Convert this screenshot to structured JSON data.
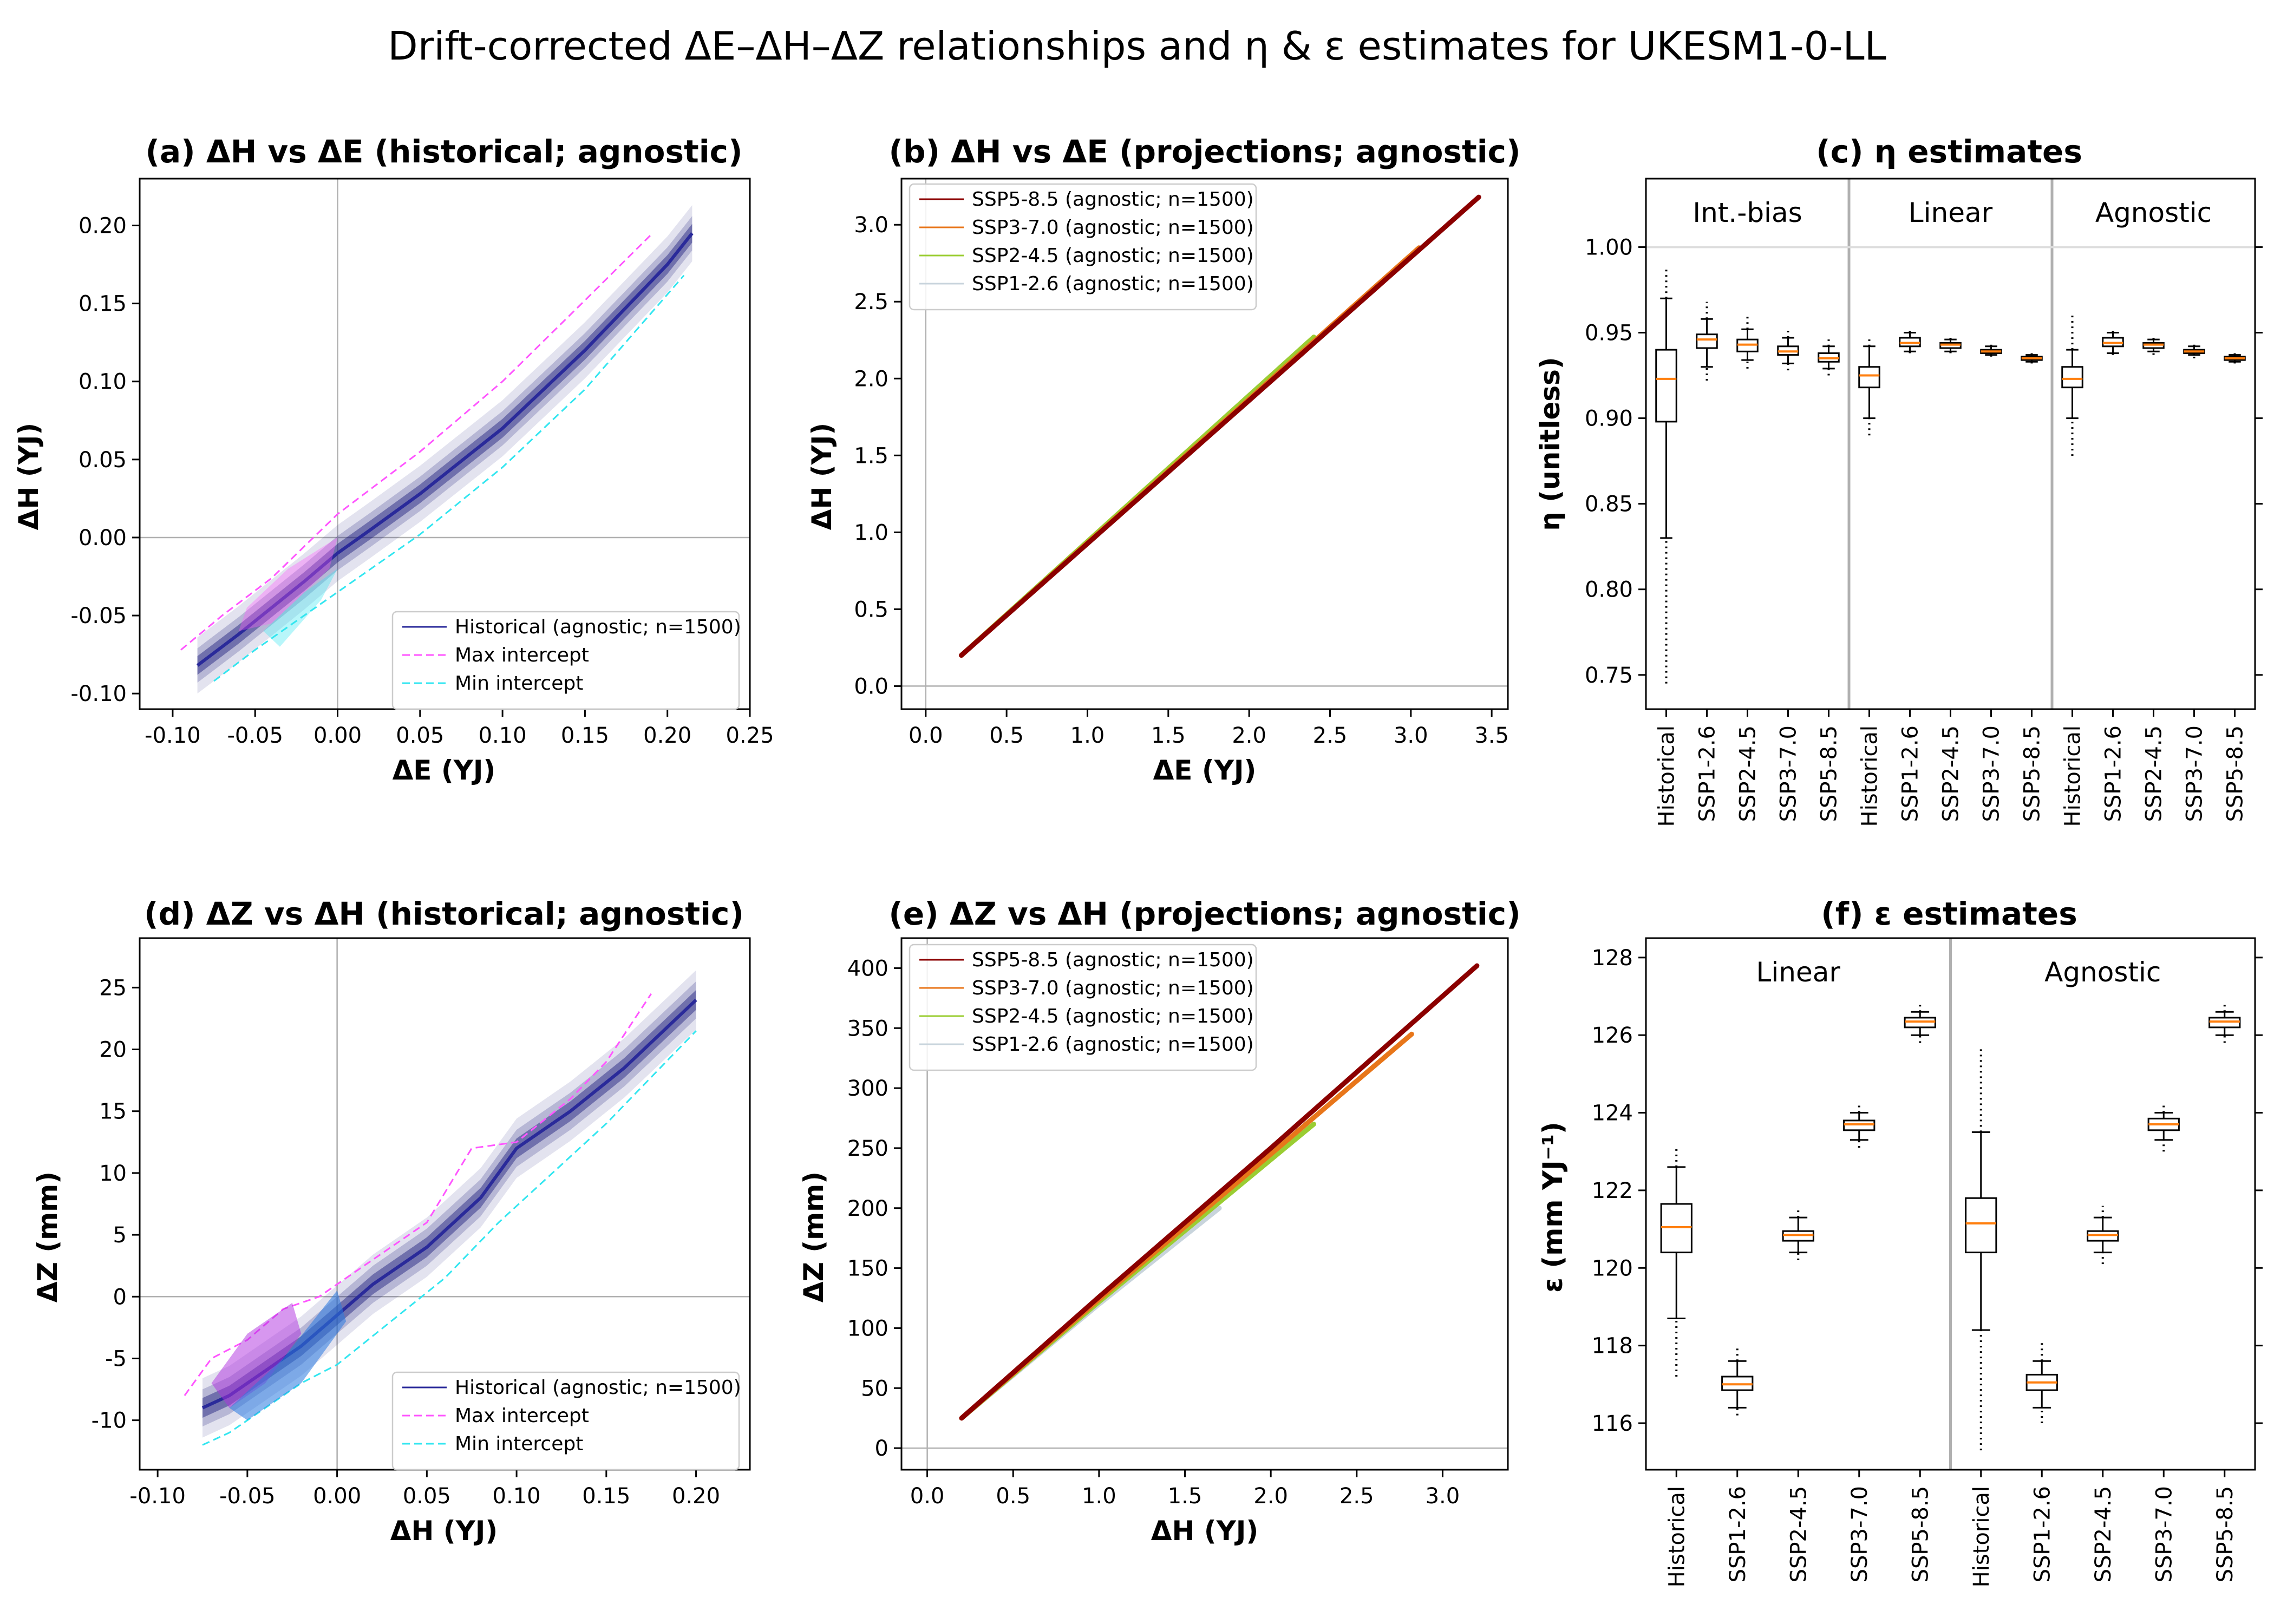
{
  "figure": {
    "title": "Drift-corrected ΔE–ΔH–ΔZ relationships and η & ε estimates for UKESM1-0-LL"
  },
  "colors": {
    "historical_line": "#2a2a9a",
    "historical_band": "#1a1a7a",
    "max_intercept": "#ff55ff",
    "min_intercept": "#33e6f0",
    "ssp585": "#8b0000",
    "ssp370": "#e8761a",
    "ssp245": "#9acd32",
    "ssp126": "#c8d4dc",
    "median": "#ff7f0e",
    "ref_line": "#b0b0b0"
  },
  "panels": {
    "a": {
      "title": "(a) ΔH vs ΔE (historical; agnostic)",
      "xlabel": "ΔE (YJ)",
      "ylabel": "ΔH (YJ)",
      "xlim": [
        -0.12,
        0.25
      ],
      "ylim": [
        -0.11,
        0.23
      ],
      "xticks": [
        "-0.10",
        "-0.05",
        "0.00",
        "0.05",
        "0.10",
        "0.15",
        "0.20",
        "0.25"
      ],
      "yticks": [
        "-0.10",
        "-0.05",
        "0.00",
        "0.05",
        "0.10",
        "0.15",
        "0.20"
      ],
      "legend": [
        "Historical (agnostic; n=1500)",
        "Max intercept",
        "Min intercept"
      ]
    },
    "b": {
      "title": "(b) ΔH vs ΔE (projections; agnostic)",
      "xlabel": "ΔE (YJ)",
      "ylabel": "ΔH (YJ)",
      "xlim": [
        -0.15,
        3.6
      ],
      "ylim": [
        -0.15,
        3.3
      ],
      "xticks": [
        "0.0",
        "0.5",
        "1.0",
        "1.5",
        "2.0",
        "2.5",
        "3.0",
        "3.5"
      ],
      "yticks": [
        "0.0",
        "0.5",
        "1.0",
        "1.5",
        "2.0",
        "2.5",
        "3.0"
      ],
      "legend": [
        "SSP5-8.5 (agnostic; n=1500)",
        "SSP3-7.0 (agnostic; n=1500)",
        "SSP2-4.5 (agnostic; n=1500)",
        "SSP1-2.6 (agnostic; n=1500)"
      ]
    },
    "c": {
      "title": "(c) η estimates",
      "ylabel": "η (unitless)",
      "ylim": [
        0.73,
        1.04
      ],
      "yticks": [
        "0.75",
        "0.80",
        "0.85",
        "0.90",
        "0.95",
        "1.00"
      ],
      "groups": [
        "Int.-bias",
        "Linear",
        "Agnostic"
      ],
      "categories": [
        "Historical",
        "SSP1-2.6",
        "SSP2-4.5",
        "SSP3-7.0",
        "SSP5-8.5",
        "Historical",
        "SSP1-2.6",
        "SSP2-4.5",
        "SSP3-7.0",
        "SSP5-8.5",
        "Historical",
        "SSP1-2.6",
        "SSP2-4.5",
        "SSP3-7.0",
        "SSP5-8.5"
      ]
    },
    "d": {
      "title": "(d) ΔZ vs ΔH (historical; agnostic)",
      "xlabel": "ΔH (YJ)",
      "ylabel": "ΔZ (mm)",
      "xlim": [
        -0.11,
        0.23
      ],
      "ylim": [
        -14,
        29
      ],
      "xticks": [
        "-0.10",
        "-0.05",
        "0.00",
        "0.05",
        "0.10",
        "0.15",
        "0.20"
      ],
      "yticks": [
        "-10",
        "-5",
        "0",
        "5",
        "10",
        "15",
        "20",
        "25"
      ],
      "legend": [
        "Historical (agnostic; n=1500)",
        "Max intercept",
        "Min intercept"
      ]
    },
    "e": {
      "title": "(e) ΔZ vs ΔH (projections; agnostic)",
      "xlabel": "ΔH (YJ)",
      "ylabel": "ΔZ (mm)",
      "xlim": [
        -0.15,
        3.38
      ],
      "ylim": [
        -18,
        425
      ],
      "xticks": [
        "0.0",
        "0.5",
        "1.0",
        "1.5",
        "2.0",
        "2.5",
        "3.0"
      ],
      "yticks": [
        "0",
        "50",
        "100",
        "150",
        "200",
        "250",
        "300",
        "350",
        "400"
      ],
      "legend": [
        "SSP5-8.5 (agnostic; n=1500)",
        "SSP3-7.0 (agnostic; n=1500)",
        "SSP2-4.5 (agnostic; n=1500)",
        "SSP1-2.6 (agnostic; n=1500)"
      ]
    },
    "f": {
      "title": "(f) ε estimates",
      "ylabel": "ε (mm YJ⁻¹)",
      "ylim": [
        114.8,
        128.5
      ],
      "yticks": [
        "116",
        "118",
        "120",
        "122",
        "124",
        "126",
        "128"
      ],
      "groups": [
        "Linear",
        "Agnostic"
      ],
      "categories": [
        "Historical",
        "SSP1-2.6",
        "SSP2-4.5",
        "SSP3-7.0",
        "SSP5-8.5",
        "Historical",
        "SSP1-2.6",
        "SSP2-4.5",
        "SSP3-7.0",
        "SSP5-8.5"
      ]
    }
  },
  "chart_data": [
    {
      "type": "line",
      "panel": "a",
      "title": "(a) ΔH vs ΔE (historical; agnostic)",
      "xlabel": "ΔE (YJ)",
      "ylabel": "ΔH (YJ)",
      "xlim": [
        -0.12,
        0.25
      ],
      "ylim": [
        -0.11,
        0.23
      ],
      "series": [
        {
          "name": "Historical (agnostic; n=1500)",
          "x": [
            -0.085,
            -0.06,
            -0.04,
            -0.02,
            0.0,
            0.02,
            0.05,
            0.1,
            0.15,
            0.2,
            0.215
          ],
          "y": [
            -0.082,
            -0.062,
            -0.045,
            -0.028,
            -0.01,
            0.005,
            0.028,
            0.07,
            0.12,
            0.175,
            0.195
          ]
        },
        {
          "name": "Max intercept",
          "x": [
            -0.095,
            -0.07,
            -0.04,
            0.0,
            0.05,
            0.1,
            0.15,
            0.19
          ],
          "y": [
            -0.072,
            -0.05,
            -0.026,
            0.015,
            0.055,
            0.1,
            0.152,
            0.194
          ]
        },
        {
          "name": "Min intercept",
          "x": [
            -0.075,
            -0.05,
            0.0,
            0.05,
            0.1,
            0.15,
            0.21
          ],
          "y": [
            -0.092,
            -0.072,
            -0.035,
            0.002,
            0.045,
            0.095,
            0.168
          ]
        }
      ]
    },
    {
      "type": "line",
      "panel": "b",
      "title": "(b) ΔH vs ΔE (projections; agnostic)",
      "xlabel": "ΔE (YJ)",
      "ylabel": "ΔH (YJ)",
      "xlim": [
        -0.15,
        3.6
      ],
      "ylim": [
        -0.15,
        3.3
      ],
      "series": [
        {
          "name": "SSP1-2.6 (agnostic; n=1500)",
          "x": [
            0.22,
            1.8
          ],
          "y": [
            0.2,
            1.7
          ]
        },
        {
          "name": "SSP2-4.5 (agnostic; n=1500)",
          "x": [
            0.22,
            2.4
          ],
          "y": [
            0.2,
            2.27
          ]
        },
        {
          "name": "SSP3-7.0 (agnostic; n=1500)",
          "x": [
            0.22,
            3.05
          ],
          "y": [
            0.2,
            2.85
          ]
        },
        {
          "name": "SSP5-8.5 (agnostic; n=1500)",
          "x": [
            0.22,
            3.42
          ],
          "y": [
            0.2,
            3.18
          ]
        }
      ]
    },
    {
      "type": "box",
      "panel": "c",
      "title": "(c) η estimates",
      "ylabel": "η (unitless)",
      "ylim": [
        0.73,
        1.04
      ],
      "groups": [
        "Int.-bias",
        "Linear",
        "Agnostic"
      ],
      "categories": [
        "Historical",
        "SSP1-2.6",
        "SSP2-4.5",
        "SSP3-7.0",
        "SSP5-8.5",
        "Historical",
        "SSP1-2.6",
        "SSP2-4.5",
        "SSP3-7.0",
        "SSP5-8.5",
        "Historical",
        "SSP1-2.6",
        "SSP2-4.5",
        "SSP3-7.0",
        "SSP5-8.5"
      ],
      "boxes": [
        {
          "q1": 0.898,
          "median": 0.923,
          "q3": 0.94,
          "wlo": 0.83,
          "whi": 0.97,
          "fmin": 0.745,
          "fmax": 0.988
        },
        {
          "q1": 0.941,
          "median": 0.946,
          "q3": 0.949,
          "wlo": 0.93,
          "whi": 0.958,
          "fmin": 0.922,
          "fmax": 0.968
        },
        {
          "q1": 0.939,
          "median": 0.943,
          "q3": 0.946,
          "wlo": 0.934,
          "whi": 0.952,
          "fmin": 0.929,
          "fmax": 0.96
        },
        {
          "q1": 0.937,
          "median": 0.939,
          "q3": 0.942,
          "wlo": 0.932,
          "whi": 0.947,
          "fmin": 0.928,
          "fmax": 0.952
        },
        {
          "q1": 0.933,
          "median": 0.935,
          "q3": 0.938,
          "wlo": 0.929,
          "whi": 0.942,
          "fmin": 0.925,
          "fmax": 0.946
        },
        {
          "q1": 0.918,
          "median": 0.925,
          "q3": 0.93,
          "wlo": 0.9,
          "whi": 0.942,
          "fmin": 0.89,
          "fmax": 0.946
        },
        {
          "q1": 0.942,
          "median": 0.944,
          "q3": 0.947,
          "wlo": 0.939,
          "whi": 0.95,
          "fmin": 0.938,
          "fmax": 0.951
        },
        {
          "q1": 0.941,
          "median": 0.943,
          "q3": 0.944,
          "wlo": 0.939,
          "whi": 0.946,
          "fmin": 0.938,
          "fmax": 0.947
        },
        {
          "q1": 0.938,
          "median": 0.939,
          "q3": 0.94,
          "wlo": 0.937,
          "whi": 0.942,
          "fmin": 0.936,
          "fmax": 0.943
        },
        {
          "q1": 0.934,
          "median": 0.935,
          "q3": 0.936,
          "wlo": 0.933,
          "whi": 0.937,
          "fmin": 0.932,
          "fmax": 0.938
        },
        {
          "q1": 0.918,
          "median": 0.923,
          "q3": 0.93,
          "wlo": 0.9,
          "whi": 0.94,
          "fmin": 0.878,
          "fmax": 0.96
        },
        {
          "q1": 0.942,
          "median": 0.944,
          "q3": 0.947,
          "wlo": 0.938,
          "whi": 0.95,
          "fmin": 0.937,
          "fmax": 0.952
        },
        {
          "q1": 0.941,
          "median": 0.943,
          "q3": 0.944,
          "wlo": 0.939,
          "whi": 0.946,
          "fmin": 0.937,
          "fmax": 0.948
        },
        {
          "q1": 0.938,
          "median": 0.939,
          "q3": 0.94,
          "wlo": 0.937,
          "whi": 0.942,
          "fmin": 0.935,
          "fmax": 0.944
        },
        {
          "q1": 0.934,
          "median": 0.935,
          "q3": 0.936,
          "wlo": 0.933,
          "whi": 0.937,
          "fmin": 0.932,
          "fmax": 0.939
        }
      ]
    },
    {
      "type": "line",
      "panel": "d",
      "title": "(d) ΔZ vs ΔH (historical; agnostic)",
      "xlabel": "ΔH (YJ)",
      "ylabel": "ΔZ (mm)",
      "xlim": [
        -0.11,
        0.23
      ],
      "ylim": [
        -14,
        29
      ],
      "series": [
        {
          "name": "Historical (agnostic; n=1500)",
          "x": [
            -0.075,
            -0.06,
            -0.04,
            -0.02,
            0.0,
            0.02,
            0.05,
            0.08,
            0.1,
            0.13,
            0.16,
            0.2
          ],
          "y": [
            -9,
            -8,
            -6,
            -4,
            -1.5,
            1,
            4,
            8,
            12,
            15,
            18.5,
            24
          ]
        },
        {
          "name": "Max intercept",
          "x": [
            -0.085,
            -0.07,
            -0.05,
            -0.03,
            -0.01,
            0.0,
            0.02,
            0.05,
            0.075,
            0.1,
            0.13,
            0.15,
            0.175
          ],
          "y": [
            -8,
            -5,
            -3.5,
            -1,
            0,
            1,
            3,
            6,
            12,
            12.5,
            16,
            19,
            24.5
          ]
        },
        {
          "name": "Min intercept",
          "x": [
            -0.075,
            -0.06,
            -0.04,
            -0.02,
            0.0,
            0.03,
            0.06,
            0.09,
            0.12,
            0.15,
            0.2
          ],
          "y": [
            -12,
            -11,
            -9,
            -7,
            -5.5,
            -2,
            1.5,
            6,
            10,
            14,
            21.5
          ]
        }
      ]
    },
    {
      "type": "line",
      "panel": "e",
      "title": "(e) ΔZ vs ΔH (projections; agnostic)",
      "xlabel": "ΔH (YJ)",
      "ylabel": "ΔZ (mm)",
      "xlim": [
        -0.15,
        3.38
      ],
      "ylim": [
        -18,
        425
      ],
      "series": [
        {
          "name": "SSP1-2.6 (agnostic; n=1500)",
          "x": [
            0.2,
            1.0,
            1.7
          ],
          "y": [
            25,
            120,
            200
          ]
        },
        {
          "name": "SSP2-4.5 (agnostic; n=1500)",
          "x": [
            0.2,
            1.0,
            2.25
          ],
          "y": [
            25,
            122,
            270
          ]
        },
        {
          "name": "SSP3-7.0 (agnostic; n=1500)",
          "x": [
            0.2,
            1.0,
            2.0,
            2.82
          ],
          "y": [
            25,
            124,
            245,
            345
          ]
        },
        {
          "name": "SSP5-8.5 (agnostic; n=1500)",
          "x": [
            0.2,
            1.0,
            2.0,
            3.2
          ],
          "y": [
            25,
            126,
            250,
            402
          ]
        }
      ]
    },
    {
      "type": "box",
      "panel": "f",
      "title": "(f) ε estimates",
      "ylabel": "ε (mm YJ⁻¹)",
      "ylim": [
        114.8,
        128.5
      ],
      "groups": [
        "Linear",
        "Agnostic"
      ],
      "categories": [
        "Historical",
        "SSP1-2.6",
        "SSP2-4.5",
        "SSP3-7.0",
        "SSP5-8.5",
        "Historical",
        "SSP1-2.6",
        "SSP2-4.5",
        "SSP3-7.0",
        "SSP5-8.5"
      ],
      "boxes": [
        {
          "q1": 120.4,
          "median": 121.05,
          "q3": 121.65,
          "wlo": 118.7,
          "whi": 122.6,
          "fmin": 117.2,
          "fmax": 123.1
        },
        {
          "q1": 116.85,
          "median": 117.0,
          "q3": 117.2,
          "wlo": 116.4,
          "whi": 117.6,
          "fmin": 116.2,
          "fmax": 118.0
        },
        {
          "q1": 120.7,
          "median": 120.85,
          "q3": 120.95,
          "wlo": 120.4,
          "whi": 121.3,
          "fmin": 120.2,
          "fmax": 121.5
        },
        {
          "q1": 123.55,
          "median": 123.7,
          "q3": 123.8,
          "wlo": 123.3,
          "whi": 124.0,
          "fmin": 123.1,
          "fmax": 124.2
        },
        {
          "q1": 126.2,
          "median": 126.35,
          "q3": 126.45,
          "wlo": 126.0,
          "whi": 126.6,
          "fmin": 125.8,
          "fmax": 126.8
        },
        {
          "q1": 120.4,
          "median": 121.15,
          "q3": 121.8,
          "wlo": 118.4,
          "whi": 123.5,
          "fmin": 115.3,
          "fmax": 125.7
        },
        {
          "q1": 116.85,
          "median": 117.05,
          "q3": 117.25,
          "wlo": 116.4,
          "whi": 117.6,
          "fmin": 116.0,
          "fmax": 118.1
        },
        {
          "q1": 120.7,
          "median": 120.85,
          "q3": 120.95,
          "wlo": 120.4,
          "whi": 121.3,
          "fmin": 120.1,
          "fmax": 121.6
        },
        {
          "q1": 123.55,
          "median": 123.7,
          "q3": 123.85,
          "wlo": 123.3,
          "whi": 124.0,
          "fmin": 123.0,
          "fmax": 124.2
        },
        {
          "q1": 126.2,
          "median": 126.35,
          "q3": 126.45,
          "wlo": 126.0,
          "whi": 126.6,
          "fmin": 125.8,
          "fmax": 126.8
        }
      ]
    }
  ]
}
